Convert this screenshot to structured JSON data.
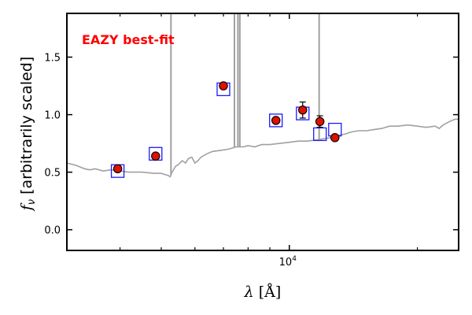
{
  "chart_data": {
    "type": "scatter",
    "title": "",
    "xlabel": "λ [Å]",
    "ylabel": "f_ν [arbitrarily scaled]",
    "ylabel_symbol": "f",
    "ylabel_sub": "ν",
    "ylabel_text": " [arbitrarily scaled]",
    "xlabel_symbol": "λ",
    "xlabel_unit": " [Å]",
    "xscale": "log",
    "xlim": [
      3000,
      25000
    ],
    "ylim": [
      -0.18,
      1.88
    ],
    "xticks": [
      {
        "value": 10000,
        "base": "10",
        "exp": "4"
      }
    ],
    "yticks": [
      {
        "value": 0.0,
        "label": "0.0"
      },
      {
        "value": 0.5,
        "label": "0.5"
      },
      {
        "value": 1.0,
        "label": "1.0"
      },
      {
        "value": 1.5,
        "label": "1.5"
      }
    ],
    "annotation": {
      "text": "EAZY best-fit",
      "color": "#ff0000"
    },
    "colors": {
      "template": "#a0a0a0",
      "model": "#1a1aff",
      "data": "#dd1100"
    },
    "series": [
      {
        "type": "line",
        "points": [
          [
            3000,
            0.58
          ],
          [
            3150,
            0.56
          ],
          [
            3300,
            0.53
          ],
          [
            3400,
            0.52
          ],
          [
            3500,
            0.53
          ],
          [
            3650,
            0.51
          ],
          [
            3800,
            0.52
          ],
          [
            4000,
            0.51
          ],
          [
            4200,
            0.5
          ],
          [
            4500,
            0.5
          ],
          [
            4800,
            0.49
          ],
          [
            5000,
            0.49
          ],
          [
            5100,
            0.48
          ],
          [
            5200,
            0.47
          ],
          [
            5250,
            0.46
          ],
          [
            5300,
            0.5
          ],
          [
            5400,
            0.55
          ],
          [
            5500,
            0.57
          ],
          [
            5600,
            0.6
          ],
          [
            5700,
            0.58
          ],
          [
            5800,
            0.62
          ],
          [
            5900,
            0.63
          ],
          [
            6000,
            0.58
          ],
          [
            6100,
            0.6
          ],
          [
            6200,
            0.63
          ],
          [
            6400,
            0.66
          ],
          [
            6600,
            0.68
          ],
          [
            6900,
            0.69
          ],
          [
            7200,
            0.7
          ],
          [
            7500,
            0.72
          ],
          [
            7800,
            0.72
          ],
          [
            8000,
            0.73
          ],
          [
            8300,
            0.72
          ],
          [
            8600,
            0.74
          ],
          [
            9000,
            0.74
          ],
          [
            9500,
            0.75
          ],
          [
            10000,
            0.76
          ],
          [
            10500,
            0.77
          ],
          [
            11000,
            0.77
          ],
          [
            11600,
            0.78
          ],
          [
            12000,
            0.79
          ],
          [
            12500,
            0.8
          ],
          [
            13000,
            0.82
          ],
          [
            13500,
            0.83
          ],
          [
            14000,
            0.85
          ],
          [
            14600,
            0.86
          ],
          [
            15200,
            0.86
          ],
          [
            15800,
            0.87
          ],
          [
            16500,
            0.88
          ],
          [
            17200,
            0.9
          ],
          [
            18000,
            0.9
          ],
          [
            19000,
            0.91
          ],
          [
            20000,
            0.9
          ],
          [
            21000,
            0.89
          ],
          [
            22000,
            0.9
          ],
          [
            22500,
            0.88
          ],
          [
            23000,
            0.91
          ],
          [
            23800,
            0.94
          ],
          [
            24500,
            0.96
          ],
          [
            25000,
            0.96
          ]
        ],
        "emission_lines": [
          {
            "x": 5270,
            "peak": 1.9
          },
          {
            "x": 7430,
            "peak": 1.9
          },
          {
            "x": 7570,
            "peak": 1.9
          },
          {
            "x": 7650,
            "peak": 1.9
          },
          {
            "x": 11750,
            "peak": 1.9
          }
        ]
      },
      {
        "type": "scatter-square",
        "points": [
          [
            3950,
            0.51
          ],
          [
            4850,
            0.66
          ],
          [
            7000,
            1.22
          ],
          [
            9300,
            0.95
          ],
          [
            10750,
            1.01
          ],
          [
            11800,
            0.83
          ],
          [
            12800,
            0.87
          ]
        ]
      },
      {
        "type": "scatter-errorbar",
        "points": [
          {
            "x": 3950,
            "y": 0.53,
            "err": 0.0
          },
          {
            "x": 4850,
            "y": 0.64,
            "err": 0.0
          },
          {
            "x": 7000,
            "y": 1.25,
            "err": 0.0
          },
          {
            "x": 9300,
            "y": 0.95,
            "err": 0.0
          },
          {
            "x": 10750,
            "y": 1.04,
            "err": 0.07
          },
          {
            "x": 11800,
            "y": 0.94,
            "err": 0.05
          },
          {
            "x": 12800,
            "y": 0.8,
            "err": 0.0
          }
        ]
      }
    ]
  }
}
